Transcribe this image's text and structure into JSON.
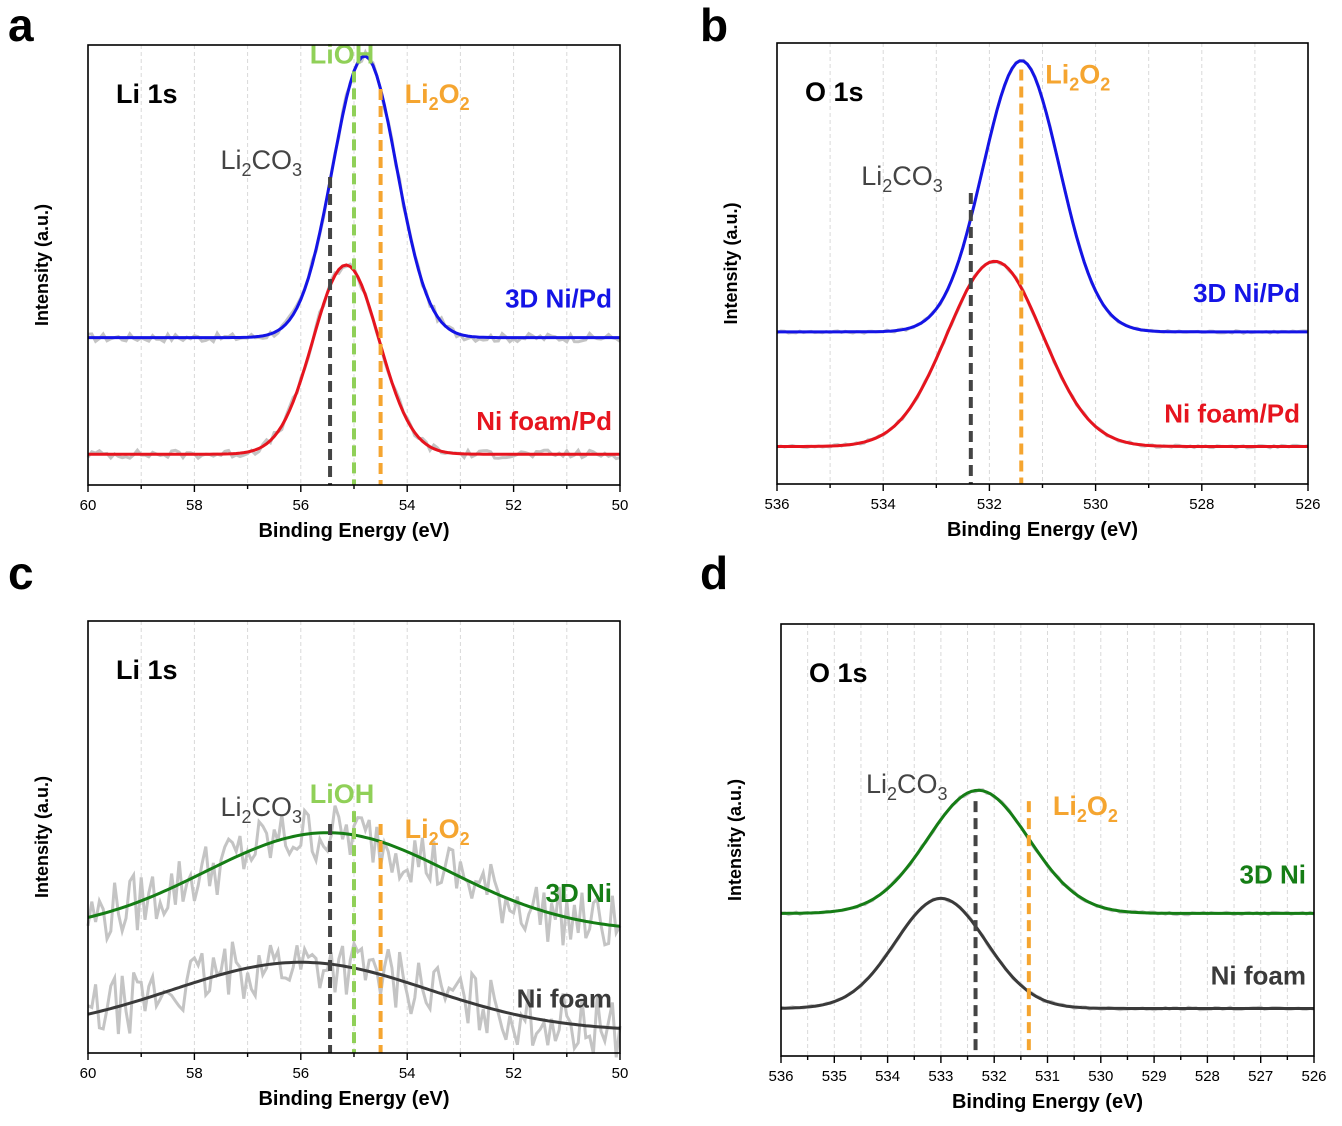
{
  "chart_data": [
    {
      "panel": "a",
      "type": "line",
      "title": "Li 1s",
      "xlabel": "Binding Energy (eV)",
      "ylabel": "Intensity (a.u.)",
      "xlim": [
        60,
        50
      ],
      "ylim": [
        0,
        1
      ],
      "x_reversed": true,
      "xticks": [
        60,
        58,
        56,
        54,
        52,
        50
      ],
      "grid": "vertical",
      "noise_level": 0.01,
      "series": [
        {
          "name": "3D Ni/Pd",
          "color": "#1414e6",
          "baseline": 0.335,
          "peak_x": 54.8,
          "height": 0.64,
          "sigma": 0.6,
          "label_anchor": "right"
        },
        {
          "name": "Ni foam/Pd",
          "color": "#e6141e",
          "baseline": 0.07,
          "peak_x": 55.15,
          "height": 0.43,
          "sigma": 0.62,
          "label_anchor": "right"
        }
      ],
      "reference_lines": [
        {
          "base": "Li",
          "sub1": "2",
          "mid": "CO",
          "sub2": "3",
          "x": 55.45,
          "color": "#444444",
          "top": 0.7
        },
        {
          "base": "LiOH",
          "sub1": "",
          "mid": "",
          "sub2": "",
          "x": 55.0,
          "color": "#90d058",
          "top": 0.94
        },
        {
          "base": "Li",
          "sub1": "2",
          "mid": "O",
          "sub2": "2",
          "x": 54.5,
          "color": "#f5a530",
          "top": 0.9
        }
      ]
    },
    {
      "panel": "b",
      "type": "line",
      "title": "O 1s",
      "xlabel": "Binding Energy (eV)",
      "ylabel": "Intensity (a.u.)",
      "xlim": [
        536,
        526
      ],
      "ylim": [
        0,
        1
      ],
      "x_reversed": true,
      "xticks": [
        536,
        534,
        532,
        530,
        528,
        526
      ],
      "grid": "vertical",
      "noise_level": 0,
      "series": [
        {
          "name": "3D Ni/Pd",
          "color": "#1414e6",
          "baseline": 0.345,
          "peak_x": 531.4,
          "height": 0.615,
          "sigma": 0.72,
          "label_anchor": "right"
        },
        {
          "name": "Ni foam/Pd",
          "color": "#e6141e",
          "baseline": 0.085,
          "peak_x": 531.9,
          "height": 0.42,
          "sigma": 0.9,
          "label_anchor": "right"
        }
      ],
      "reference_lines": [
        {
          "base": "Li",
          "sub1": "2",
          "mid": "CO",
          "sub2": "3",
          "x": 532.35,
          "color": "#444444",
          "top": 0.66
        },
        {
          "base": "Li",
          "sub1": "2",
          "mid": "O",
          "sub2": "2",
          "x": 531.4,
          "color": "#f5a530",
          "top": 0.94
        }
      ]
    },
    {
      "panel": "c",
      "type": "line",
      "title": "Li 1s",
      "xlabel": "Binding Energy (eV)",
      "ylabel": "Intensity (a.u.)",
      "xlim": [
        60,
        50
      ],
      "ylim": [
        0,
        1
      ],
      "x_reversed": true,
      "xticks": [
        60,
        58,
        56,
        54,
        52,
        50
      ],
      "grid": "vertical",
      "noise_level": 0.07,
      "series": [
        {
          "name": "3D Ni",
          "color": "#157d15",
          "baseline": 0.28,
          "peak_x": 55.5,
          "height": 0.23,
          "sigma": 2.3,
          "label_anchor": "right"
        },
        {
          "name": "Ni foam",
          "color": "#3a3a3a",
          "baseline": 0.05,
          "peak_x": 56.0,
          "height": 0.16,
          "sigma": 2.4,
          "label_anchor": "right"
        }
      ],
      "reference_lines": [
        {
          "base": "Li",
          "sub1": "2",
          "mid": "CO",
          "sub2": "3",
          "x": 55.45,
          "color": "#444444",
          "top": 0.53
        },
        {
          "base": "LiOH",
          "sub1": "",
          "mid": "",
          "sub2": "",
          "x": 55.0,
          "color": "#90d058",
          "top": 0.56
        },
        {
          "base": "Li",
          "sub1": "2",
          "mid": "O",
          "sub2": "2",
          "x": 54.5,
          "color": "#f5a530",
          "top": 0.53
        }
      ]
    },
    {
      "panel": "d",
      "type": "line",
      "title": "O 1s",
      "xlabel": "Binding Energy (eV)",
      "ylabel": "Intensity (a.u.)",
      "xlim": [
        536,
        526
      ],
      "ylim": [
        0,
        1
      ],
      "x_reversed": true,
      "xticks": [
        536,
        535,
        534,
        533,
        532,
        531,
        530,
        529,
        528,
        527,
        526
      ],
      "grid": "vertical",
      "noise_level": 0,
      "series": [
        {
          "name": "3D Ni",
          "color": "#157d15",
          "baseline": 0.33,
          "peak_x": 532.3,
          "height": 0.285,
          "sigma": 0.95,
          "label_anchor": "right"
        },
        {
          "name": "Ni foam",
          "color": "#3a3a3a",
          "baseline": 0.11,
          "peak_x": 533.0,
          "height": 0.255,
          "sigma": 0.85,
          "label_anchor": "right"
        }
      ],
      "reference_lines": [
        {
          "base": "Li",
          "sub1": "2",
          "mid": "CO",
          "sub2": "3",
          "x": 532.35,
          "color": "#444444",
          "top": 0.59
        },
        {
          "base": "Li",
          "sub1": "2",
          "mid": "O",
          "sub2": "2",
          "x": 531.35,
          "color": "#f5a530",
          "top": 0.59
        }
      ]
    }
  ]
}
